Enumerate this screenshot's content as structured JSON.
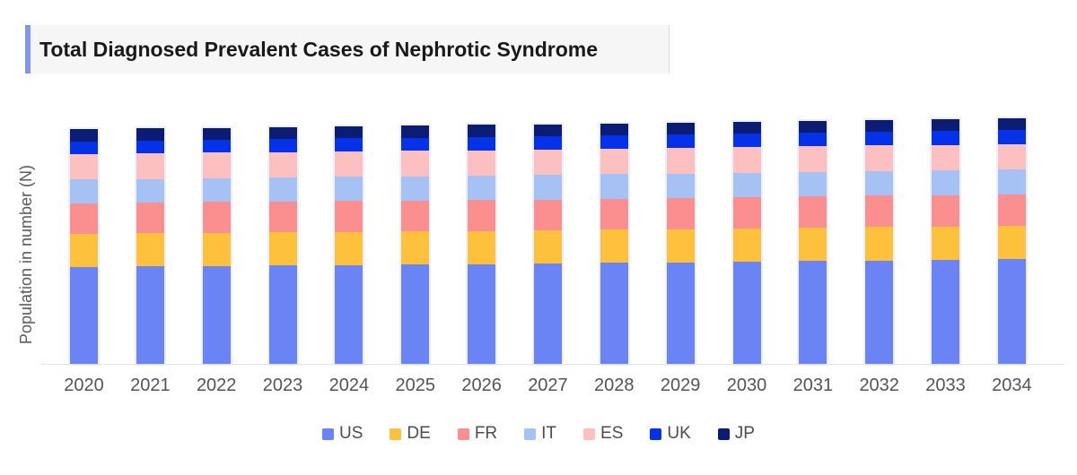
{
  "header": {
    "title": "Total Diagnosed Prevalent Cases of Nephrotic Syndrome",
    "accent_color": "#7d97ef",
    "band_bg": "#f6f6f6"
  },
  "chart_data": {
    "type": "bar",
    "stacked": true,
    "title": "Total Diagnosed Prevalent Cases of Nephrotic Syndrome",
    "xlabel": "",
    "ylabel": "Population in number (N)",
    "grid": false,
    "y_axis_ticks_visible": false,
    "legend_position": "bottom",
    "note": "No numeric y-axis ticks are shown; values are relative estimated units read from bar heights",
    "categories": [
      "2020",
      "2021",
      "2022",
      "2023",
      "2024",
      "2025",
      "2026",
      "2027",
      "2028",
      "2029",
      "2030",
      "2031",
      "2032",
      "2033",
      "2034"
    ],
    "series": [
      {
        "name": "US",
        "color": "#6a84f6",
        "values": [
          108.4,
          108.9,
          109.4,
          109.8,
          110.3,
          110.8,
          111.2,
          111.7,
          112.5,
          113.2,
          114.0,
          114.7,
          115.5,
          116.2,
          117.0
        ]
      },
      {
        "name": "DE",
        "color": "#fdc13c",
        "values": [
          37.0,
          37.0,
          37.1,
          37.1,
          37.1,
          37.2,
          37.2,
          37.3,
          37.3,
          37.3,
          37.3,
          37.3,
          37.3,
          37.3,
          37.3
        ]
      },
      {
        "name": "FR",
        "color": "#fb8e8e",
        "values": [
          34.0,
          34.1,
          34.2,
          34.2,
          34.3,
          34.4,
          34.5,
          34.5,
          34.6,
          34.7,
          34.8,
          34.8,
          34.9,
          34.9,
          35.0
        ]
      },
      {
        "name": "IT",
        "color": "#a6c1f3",
        "values": [
          26.3,
          26.5,
          26.6,
          26.7,
          26.9,
          27.0,
          27.2,
          27.3,
          27.3,
          27.3,
          27.3,
          27.4,
          27.4,
          27.4,
          27.4
        ]
      },
      {
        "name": "ES",
        "color": "#fcc0c0",
        "values": [
          28.3,
          28.3,
          28.3,
          28.3,
          28.3,
          28.3,
          28.3,
          28.3,
          28.3,
          28.4,
          28.4,
          28.5,
          28.5,
          28.6,
          28.6
        ]
      },
      {
        "name": "UK",
        "color": "#0531e8",
        "values": [
          14.4,
          14.5,
          14.6,
          14.7,
          14.7,
          14.8,
          14.9,
          15.0,
          15.1,
          15.2,
          15.3,
          15.4,
          15.5,
          15.6,
          15.7
        ]
      },
      {
        "name": "JP",
        "color": "#0b1c74",
        "values": [
          13.3,
          13.3,
          13.3,
          13.4,
          13.4,
          13.4,
          13.4,
          13.4,
          13.3,
          13.2,
          13.1,
          13.0,
          12.9,
          12.8,
          12.7
        ]
      }
    ]
  }
}
